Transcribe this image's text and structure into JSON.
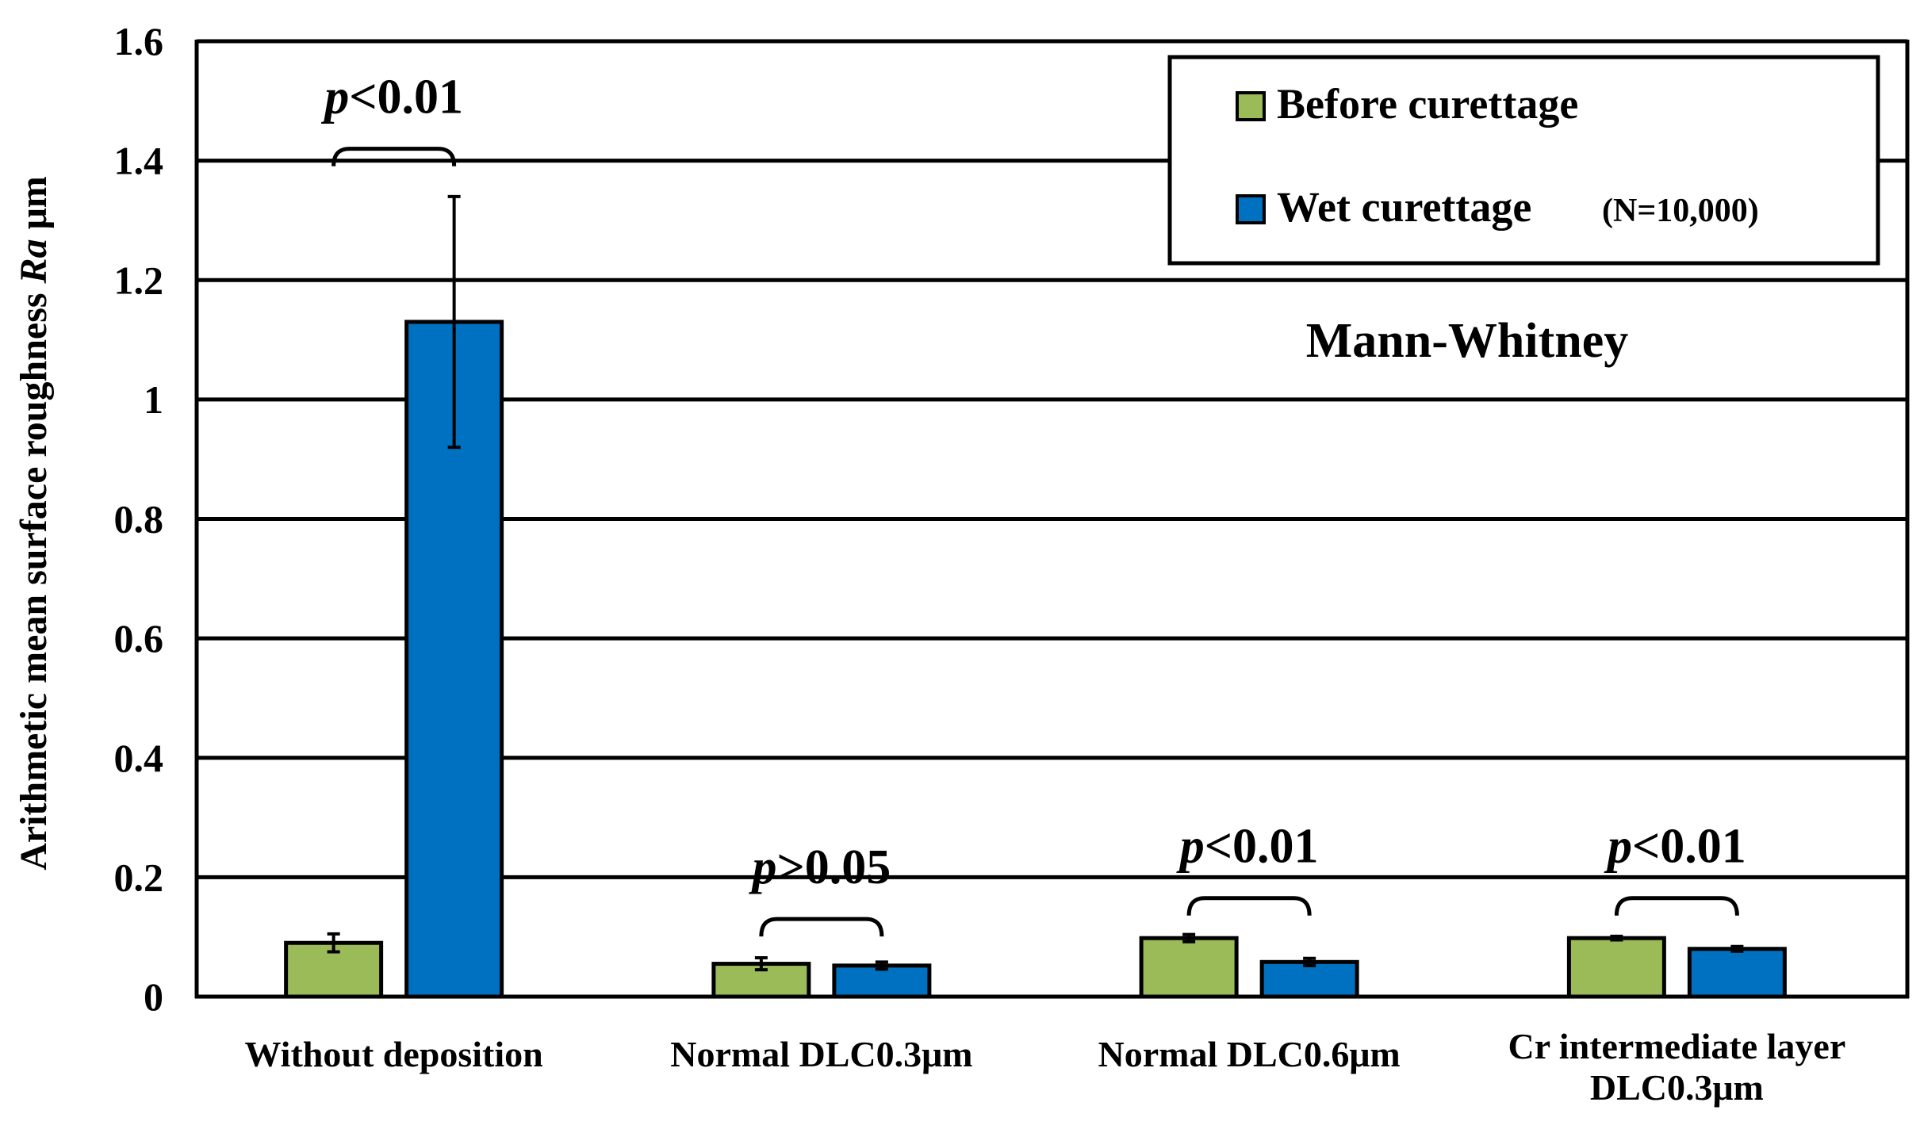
{
  "chart_data": {
    "type": "bar",
    "title": "",
    "xlabel": "",
    "ylabel": {
      "text": "Arithmetic mean surface roughness",
      "var": "Ra",
      "unit": "μm"
    },
    "ylim": [
      0,
      1.6
    ],
    "yticks": [
      {
        "v": 0,
        "label": "0"
      },
      {
        "v": 0.2,
        "label": "0.2"
      },
      {
        "v": 0.4,
        "label": "0.4"
      },
      {
        "v": 0.6,
        "label": "0.6"
      },
      {
        "v": 0.8,
        "label": "0.8"
      },
      {
        "v": 1.0,
        "label": "1"
      },
      {
        "v": 1.2,
        "label": "1.2"
      },
      {
        "v": 1.4,
        "label": "1.4"
      },
      {
        "v": 1.6,
        "label": "1.6"
      }
    ],
    "grid": true,
    "categories": [
      [
        "Without  deposition"
      ],
      [
        "Normal DLC0.3μm"
      ],
      [
        "Normal DLC0.6μm"
      ],
      [
        "Cr intermediate layer",
        "DLC0.3μm"
      ]
    ],
    "series": [
      {
        "name": "Before curettage",
        "color": "#9BBB59",
        "values": [
          0.09,
          0.055,
          0.098,
          0.098
        ],
        "errors": [
          0.015,
          0.01,
          0.006,
          0.003
        ]
      },
      {
        "name": "Wet curettage",
        "color": "#0070C0",
        "values": [
          1.13,
          0.052,
          0.058,
          0.08
        ],
        "errors": [
          0.21,
          0.006,
          0.006,
          0.004
        ]
      }
    ],
    "legend": {
      "position": "top-right",
      "entries": [
        {
          "label": "Before curettage",
          "note": ""
        },
        {
          "label": "Wet curettage",
          "note": "(N=10,000)"
        }
      ]
    },
    "annotations": {
      "test": "Mann-Whitney",
      "significance": [
        {
          "p": "p",
          "rel": "<0.01",
          "bracket_y": 1.42
        },
        {
          "p": "p",
          "rel": ">0.05",
          "bracket_y": 0.13
        },
        {
          "p": "p",
          "rel": "<0.01",
          "bracket_y": 0.165
        },
        {
          "p": "p",
          "rel": "<0.01",
          "bracket_y": 0.165
        }
      ]
    }
  }
}
